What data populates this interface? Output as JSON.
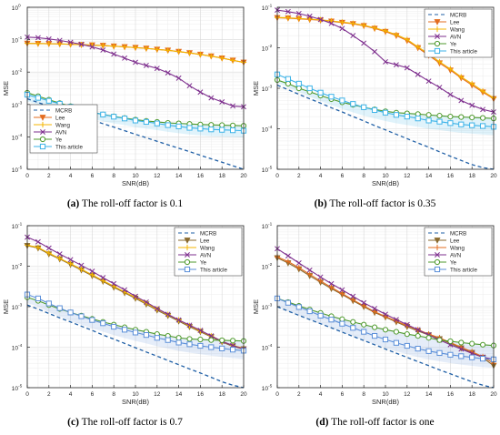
{
  "figure": {
    "captions": [
      {
        "tag": "(a)",
        "text": " The roll-off factor is 0.1"
      },
      {
        "tag": "(b)",
        "text": " The roll-off factor is 0.35"
      },
      {
        "tag": "(c)",
        "text": " The roll-off factor is 0.7"
      },
      {
        "tag": "(d)",
        "text": " The roll-off factor is one"
      }
    ]
  },
  "chart_data": [
    {
      "type": "line",
      "panel": "a",
      "xlabel": "SNR(dB)",
      "ylabel": "MSE",
      "xlim": [
        0,
        20
      ],
      "ylim": [
        1e-05,
        1
      ],
      "yscale": "log",
      "xticks": [
        0,
        2,
        4,
        6,
        8,
        10,
        12,
        14,
        16,
        18,
        20
      ],
      "yticks": [
        {
          "v": 1e-05,
          "e": "-5"
        },
        {
          "v": 0.0001,
          "e": "-4"
        },
        {
          "v": 0.001,
          "e": "-3"
        },
        {
          "v": 0.01,
          "e": "-2"
        },
        {
          "v": 0.1,
          "e": "-1"
        },
        {
          "v": 1,
          "e": "0"
        }
      ],
      "grid": true,
      "legend_position": "bottom-left",
      "x": [
        0,
        1,
        2,
        3,
        4,
        5,
        6,
        7,
        8,
        9,
        10,
        11,
        12,
        13,
        14,
        15,
        16,
        17,
        18,
        19,
        20
      ],
      "series": [
        {
          "name": "MCRB",
          "color": "#1f5fa6",
          "marker": "none",
          "dash": true,
          "values": [
            0.0015,
            0.00115,
            0.00089,
            0.00069,
            0.00054,
            0.00042,
            0.00033,
            0.000255,
            0.0002,
            0.000155,
            0.00012,
            9.4e-05,
            7.3e-05,
            5.7e-05,
            4.45e-05,
            3.5e-05,
            2.7e-05,
            2.1e-05,
            1.65e-05,
            1.28e-05,
            1e-05
          ]
        },
        {
          "name": "Lee",
          "color": "#e36c1f",
          "marker": "triangle-down",
          "dash": false,
          "values": [
            0.077,
            0.076,
            0.075,
            0.074,
            0.072,
            0.07,
            0.068,
            0.066,
            0.063,
            0.06,
            0.057,
            0.054,
            0.05,
            0.047,
            0.043,
            0.039,
            0.035,
            0.031,
            0.027,
            0.023,
            0.02
          ]
        },
        {
          "name": "Wang",
          "color": "#f4b400",
          "marker": "plus",
          "dash": false,
          "values": [
            0.077,
            0.076,
            0.075,
            0.074,
            0.072,
            0.07,
            0.068,
            0.066,
            0.063,
            0.06,
            0.057,
            0.054,
            0.05,
            0.047,
            0.043,
            0.039,
            0.035,
            0.031,
            0.027,
            0.023,
            0.02
          ]
        },
        {
          "name": "AVN",
          "color": "#7e2f8e",
          "marker": "x",
          "dash": false,
          "values": [
            0.12,
            0.115,
            0.105,
            0.095,
            0.083,
            0.072,
            0.06,
            0.048,
            0.036,
            0.027,
            0.02,
            0.016,
            0.013,
            0.0095,
            0.0065,
            0.0038,
            0.0024,
            0.0016,
            0.0012,
            0.0009,
            0.00085
          ]
        },
        {
          "name": "Ye",
          "color": "#4f9a2e",
          "marker": "circle",
          "dash": false,
          "values": [
            0.0023,
            0.0018,
            0.0014,
            0.0011,
            0.00088,
            0.0007,
            0.00058,
            0.00049,
            0.00043,
            0.00038,
            0.00034,
            0.00031,
            0.00029,
            0.00027,
            0.00026,
            0.00025,
            0.00024,
            0.000235,
            0.00023,
            0.000225,
            0.00022
          ]
        },
        {
          "name": "This article",
          "color": "#3db3e8",
          "marker": "square",
          "dash": false,
          "values": [
            0.002,
            0.0016,
            0.0013,
            0.00105,
            0.00085,
            0.0007,
            0.00058,
            0.00049,
            0.00042,
            0.00037,
            0.00032,
            0.00029,
            0.00026,
            0.00023,
            0.00021,
            0.00019,
            0.00018,
            0.00017,
            0.000165,
            0.00016,
            0.000155
          ]
        }
      ]
    },
    {
      "type": "line",
      "panel": "b",
      "xlabel": "SNR(dB)",
      "ylabel": "MSE",
      "xlim": [
        0,
        20
      ],
      "ylim": [
        1e-05,
        0.1
      ],
      "yscale": "log",
      "xticks": [
        0,
        2,
        4,
        6,
        8,
        10,
        12,
        14,
        16,
        18,
        20
      ],
      "yticks": [
        {
          "v": 1e-05,
          "e": "-5"
        },
        {
          "v": 0.0001,
          "e": "-4"
        },
        {
          "v": 0.001,
          "e": "-3"
        },
        {
          "v": 0.01,
          "e": "-2"
        },
        {
          "v": 0.1,
          "e": "-1"
        }
      ],
      "grid": true,
      "legend_position": "top-right",
      "x": [
        0,
        1,
        2,
        3,
        4,
        5,
        6,
        7,
        8,
        9,
        10,
        11,
        12,
        13,
        14,
        15,
        16,
        17,
        18,
        19,
        20
      ],
      "series": [
        {
          "name": "MCRB",
          "color": "#1f5fa6",
          "marker": "none",
          "dash": true,
          "values": [
            0.0012,
            0.00092,
            0.00071,
            0.00055,
            0.00043,
            0.00033,
            0.00026,
            0.0002,
            0.000156,
            0.00012,
            9.4e-05,
            7.3e-05,
            5.7e-05,
            4.45e-05,
            3.5e-05,
            2.7e-05,
            2.1e-05,
            1.65e-05,
            1.3e-05,
            1.1e-05,
            1e-05
          ]
        },
        {
          "name": "Lee",
          "color": "#e36c1f",
          "marker": "triangle-down",
          "dash": false,
          "values": [
            0.055,
            0.054,
            0.052,
            0.05,
            0.048,
            0.045,
            0.042,
            0.039,
            0.035,
            0.03,
            0.025,
            0.02,
            0.015,
            0.01,
            0.0065,
            0.0042,
            0.0028,
            0.0018,
            0.0012,
            0.0008,
            0.00055
          ]
        },
        {
          "name": "Wang",
          "color": "#f4b400",
          "marker": "plus",
          "dash": false,
          "values": [
            0.056,
            0.055,
            0.053,
            0.051,
            0.049,
            0.046,
            0.043,
            0.04,
            0.036,
            0.031,
            0.026,
            0.021,
            0.016,
            0.0105,
            0.007,
            0.0045,
            0.003,
            0.0019,
            0.0013,
            0.00085,
            0.00058
          ]
        },
        {
          "name": "AVN",
          "color": "#7e2f8e",
          "marker": "x",
          "dash": false,
          "values": [
            0.085,
            0.078,
            0.07,
            0.06,
            0.05,
            0.04,
            0.03,
            0.02,
            0.013,
            0.008,
            0.0045,
            0.0038,
            0.0032,
            0.0022,
            0.0015,
            0.00105,
            0.0007,
            0.0005,
            0.00038,
            0.0003,
            0.00026
          ]
        },
        {
          "name": "Ye",
          "color": "#4f9a2e",
          "marker": "circle",
          "dash": false,
          "values": [
            0.0016,
            0.0013,
            0.001,
            0.00082,
            0.00066,
            0.00054,
            0.00045,
            0.00039,
            0.00034,
            0.0003,
            0.00027,
            0.00025,
            0.00024,
            0.00023,
            0.00022,
            0.00021,
            0.0002,
            0.000195,
            0.00019,
            0.000185,
            0.00018
          ]
        },
        {
          "name": "This article",
          "color": "#3db3e8",
          "marker": "square",
          "dash": false,
          "values": [
            0.0022,
            0.0017,
            0.0013,
            0.001,
            0.00078,
            0.00062,
            0.0005,
            0.00041,
            0.00034,
            0.00029,
            0.00025,
            0.00022,
            0.0002,
            0.00018,
            0.00016,
            0.00015,
            0.000138,
            0.000128,
            0.000122,
            0.000117,
            0.000112
          ]
        }
      ]
    },
    {
      "type": "line",
      "panel": "c",
      "xlabel": "SNR(dB)",
      "ylabel": "MSE",
      "xlim": [
        0,
        20
      ],
      "ylim": [
        1e-05,
        0.1
      ],
      "yscale": "log",
      "xticks": [
        0,
        2,
        4,
        6,
        8,
        10,
        12,
        14,
        16,
        18,
        20
      ],
      "yticks": [
        {
          "v": 1e-05,
          "e": "-5"
        },
        {
          "v": 0.0001,
          "e": "-4"
        },
        {
          "v": 0.001,
          "e": "-3"
        },
        {
          "v": 0.01,
          "e": "-2"
        },
        {
          "v": 0.1,
          "e": "-1"
        }
      ],
      "grid": true,
      "legend_position": "top-right",
      "x": [
        0,
        1,
        2,
        3,
        4,
        5,
        6,
        7,
        8,
        9,
        10,
        11,
        12,
        13,
        14,
        15,
        16,
        17,
        18,
        19,
        20
      ],
      "series": [
        {
          "name": "MCRB",
          "color": "#1f5fa6",
          "marker": "none",
          "dash": true,
          "values": [
            0.0011,
            0.00087,
            0.00068,
            0.00053,
            0.00042,
            0.00033,
            0.00026,
            0.0002,
            0.000158,
            0.000124,
            9.7e-05,
            7.6e-05,
            6e-05,
            4.7e-05,
            3.7e-05,
            2.9e-05,
            2.3e-05,
            1.8e-05,
            1.4e-05,
            1.15e-05,
            1e-05
          ]
        },
        {
          "name": "Lee",
          "color": "#8a6a2e",
          "marker": "triangle-down",
          "dash": false,
          "values": [
            0.032,
            0.028,
            0.02,
            0.015,
            0.011,
            0.008,
            0.0058,
            0.0042,
            0.003,
            0.0022,
            0.0016,
            0.00115,
            0.00082,
            0.0006,
            0.00044,
            0.00032,
            0.00024,
            0.00018,
            0.000135,
            0.000105,
            9e-05
          ]
        },
        {
          "name": "Wang",
          "color": "#f4b400",
          "marker": "plus",
          "dash": false,
          "values": [
            0.033,
            0.029,
            0.021,
            0.0155,
            0.0115,
            0.0084,
            0.0061,
            0.0044,
            0.0032,
            0.0023,
            0.0017,
            0.00122,
            0.00088,
            0.00064,
            0.00047,
            0.00034,
            0.00025,
            0.00019,
            0.00014,
            0.00011,
            9.5e-05
          ]
        },
        {
          "name": "AVN",
          "color": "#7e2f8e",
          "marker": "x",
          "dash": false,
          "values": [
            0.052,
            0.04,
            0.028,
            0.02,
            0.0145,
            0.0105,
            0.0075,
            0.0052,
            0.0037,
            0.0026,
            0.0018,
            0.0013,
            0.0009,
            0.00065,
            0.00047,
            0.00035,
            0.00026,
            0.00019,
            0.00014,
            0.00011,
            9e-05
          ]
        },
        {
          "name": "Ye",
          "color": "#4f9a2e",
          "marker": "circle",
          "dash": false,
          "values": [
            0.0017,
            0.0014,
            0.0011,
            0.00088,
            0.00072,
            0.0006,
            0.0005,
            0.00042,
            0.00036,
            0.00031,
            0.00027,
            0.00024,
            0.00021,
            0.00019,
            0.00017,
            0.00016,
            0.000155,
            0.00015,
            0.000148,
            0.000145,
            0.000142
          ]
        },
        {
          "name": "This article",
          "color": "#5b8fd9",
          "marker": "square",
          "dash": false,
          "values": [
            0.002,
            0.0016,
            0.0012,
            0.00092,
            0.00072,
            0.00058,
            0.00047,
            0.00039,
            0.00032,
            0.00027,
            0.00023,
            0.0002,
            0.00017,
            0.00015,
            0.00013,
            0.000118,
            0.000108,
            0.0001,
            9.3e-05,
            8.7e-05,
            8.2e-05
          ]
        }
      ]
    },
    {
      "type": "line",
      "panel": "d",
      "xlabel": "SNR(dB)",
      "ylabel": "MSE",
      "xlim": [
        0,
        20
      ],
      "ylim": [
        1e-05,
        0.1
      ],
      "yscale": "log",
      "xticks": [
        0,
        2,
        4,
        6,
        8,
        10,
        12,
        14,
        16,
        18,
        20
      ],
      "yticks": [
        {
          "v": 1e-05,
          "e": "-5"
        },
        {
          "v": 0.0001,
          "e": "-4"
        },
        {
          "v": 0.001,
          "e": "-3"
        },
        {
          "v": 0.01,
          "e": "-2"
        },
        {
          "v": 0.1,
          "e": "-1"
        }
      ],
      "grid": true,
      "legend_position": "top-right",
      "x": [
        0,
        1,
        2,
        3,
        4,
        5,
        6,
        7,
        8,
        9,
        10,
        11,
        12,
        13,
        14,
        15,
        16,
        17,
        18,
        19,
        20
      ],
      "series": [
        {
          "name": "MCRB",
          "color": "#1f5fa6",
          "marker": "none",
          "dash": true,
          "values": [
            0.001,
            0.00078,
            0.00061,
            0.00048,
            0.00038,
            0.0003,
            0.000235,
            0.000185,
            0.000146,
            0.000115,
            9e-05,
            7.1e-05,
            5.6e-05,
            4.4e-05,
            3.5e-05,
            2.75e-05,
            2.2e-05,
            1.75e-05,
            1.4e-05,
            1.15e-05,
            1e-05
          ]
        },
        {
          "name": "Lee",
          "color": "#8a6a2e",
          "marker": "triangle-down",
          "dash": false,
          "values": [
            0.016,
            0.012,
            0.0085,
            0.0058,
            0.004,
            0.0028,
            0.002,
            0.0014,
            0.001,
            0.00072,
            0.00055,
            0.00042,
            0.00032,
            0.00025,
            0.0002,
            0.00016,
            0.000125,
            9.5e-05,
            7.3e-05,
            5.5e-05,
            3.5e-05
          ]
        },
        {
          "name": "Wang",
          "color": "#e36c1f",
          "marker": "plus",
          "dash": false,
          "values": [
            0.017,
            0.013,
            0.0092,
            0.0063,
            0.0043,
            0.003,
            0.0021,
            0.00148,
            0.00105,
            0.00075,
            0.00057,
            0.00044,
            0.00034,
            0.00027,
            0.00021,
            0.00017,
            0.00013,
            0.0001,
            7.7e-05,
            5.8e-05,
            4e-05
          ]
        },
        {
          "name": "AVN",
          "color": "#7e2f8e",
          "marker": "x",
          "dash": false,
          "values": [
            0.027,
            0.018,
            0.012,
            0.008,
            0.0054,
            0.0037,
            0.0026,
            0.0018,
            0.00125,
            0.0009,
            0.00065,
            0.00048,
            0.00036,
            0.00027,
            0.0002,
            0.00015,
            0.000115,
            9e-05,
            7e-05,
            5.7e-05,
            5e-05
          ]
        },
        {
          "name": "Ye",
          "color": "#4f9a2e",
          "marker": "circle",
          "dash": false,
          "values": [
            0.0016,
            0.0013,
            0.00105,
            0.00085,
            0.0007,
            0.00058,
            0.00049,
            0.00042,
            0.00036,
            0.00031,
            0.00027,
            0.00024,
            0.00021,
            0.00019,
            0.00017,
            0.00015,
            0.00014,
            0.00013,
            0.000122,
            0.000115,
            0.00011
          ]
        },
        {
          "name": "This article",
          "color": "#5b8fd9",
          "marker": "square",
          "dash": false,
          "values": [
            0.0016,
            0.00125,
            0.00098,
            0.00077,
            0.0006,
            0.00048,
            0.00038,
            0.0003,
            0.00024,
            0.00019,
            0.000155,
            0.000128,
            0.000108,
            9.2e-05,
            8e-05,
            7.2e-05,
            6.5e-05,
            6e-05,
            5.6e-05,
            5.2e-05,
            5e-05
          ]
        }
      ]
    }
  ]
}
